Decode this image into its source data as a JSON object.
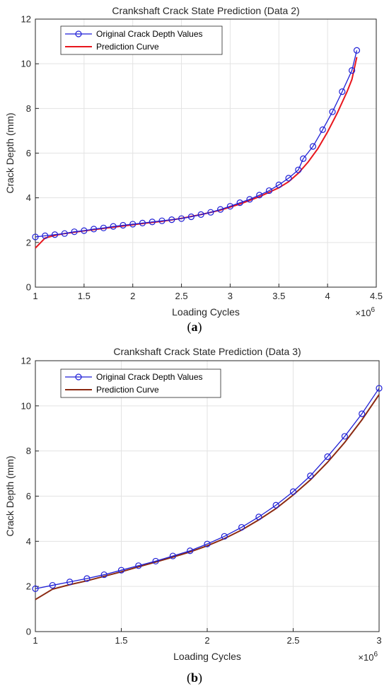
{
  "chart_data": [
    {
      "type": "line",
      "title": "Crankshaft Crack State Prediction (Data 2)",
      "xlabel": "Loading Cycles",
      "ylabel": "Crack Depth (mm)",
      "x_exponent_label": "×10",
      "x_exponent_power": "6",
      "xlim": [
        1,
        4.5
      ],
      "ylim": [
        0,
        12
      ],
      "xticks": [
        "1",
        "1.5",
        "2",
        "2.5",
        "3",
        "3.5",
        "4",
        "4.5"
      ],
      "yticks": [
        "0",
        "2",
        "4",
        "6",
        "8",
        "10",
        "12"
      ],
      "grid": true,
      "legend_position": "top-left",
      "caption": "(a)",
      "series": [
        {
          "name": "Original Crack Depth Values",
          "color": "#1f1fd6",
          "marker": "circle",
          "x": [
            1.0,
            1.1,
            1.2,
            1.3,
            1.4,
            1.5,
            1.6,
            1.7,
            1.8,
            1.9,
            2.0,
            2.1,
            2.2,
            2.3,
            2.4,
            2.5,
            2.6,
            2.7,
            2.8,
            2.9,
            3.0,
            3.1,
            3.2,
            3.3,
            3.4,
            3.5,
            3.6,
            3.7,
            3.75,
            3.85,
            3.95,
            4.05,
            4.15,
            4.25,
            4.3
          ],
          "y": [
            2.25,
            2.3,
            2.35,
            2.4,
            2.48,
            2.53,
            2.6,
            2.65,
            2.72,
            2.77,
            2.82,
            2.87,
            2.92,
            2.97,
            3.02,
            3.07,
            3.15,
            3.25,
            3.35,
            3.48,
            3.62,
            3.78,
            3.93,
            4.12,
            4.32,
            4.58,
            4.88,
            5.25,
            5.75,
            6.3,
            7.05,
            7.85,
            8.75,
            9.7,
            10.6
          ]
        },
        {
          "name": "Prediction Curve",
          "color": "#e8161d",
          "x": [
            1.0,
            1.1,
            1.2,
            1.3,
            1.5,
            1.7,
            1.9,
            2.1,
            2.3,
            2.5,
            2.7,
            2.9,
            3.1,
            3.3,
            3.5,
            3.6,
            3.7,
            3.8,
            3.9,
            4.0,
            4.1,
            4.2,
            4.25,
            4.3
          ],
          "y": [
            1.75,
            2.2,
            2.32,
            2.4,
            2.52,
            2.63,
            2.74,
            2.85,
            2.95,
            3.08,
            3.25,
            3.45,
            3.72,
            4.05,
            4.45,
            4.72,
            5.1,
            5.6,
            6.2,
            6.95,
            7.8,
            8.75,
            9.3,
            10.3
          ]
        }
      ]
    },
    {
      "type": "line",
      "title": "Crankshaft Crack State Prediction (Data 3)",
      "xlabel": "Loading Cycles",
      "ylabel": "Crack Depth (mm)",
      "x_exponent_label": "×10",
      "x_exponent_power": "6",
      "xlim": [
        1,
        3
      ],
      "ylim": [
        0,
        12
      ],
      "xticks": [
        "1",
        "1.5",
        "2",
        "2.5",
        "3"
      ],
      "yticks": [
        "0",
        "2",
        "4",
        "6",
        "8",
        "10",
        "12"
      ],
      "grid": true,
      "legend_position": "top-left",
      "caption": "(b)",
      "series": [
        {
          "name": "Original Crack Depth Values",
          "color": "#1f1fd6",
          "marker": "circle",
          "x": [
            1.0,
            1.1,
            1.2,
            1.3,
            1.4,
            1.5,
            1.6,
            1.7,
            1.8,
            1.9,
            2.0,
            2.1,
            2.2,
            2.3,
            2.4,
            2.5,
            2.6,
            2.7,
            2.8,
            2.9,
            3.0
          ],
          "y": [
            1.9,
            2.05,
            2.2,
            2.35,
            2.52,
            2.72,
            2.92,
            3.12,
            3.35,
            3.58,
            3.88,
            4.22,
            4.62,
            5.08,
            5.6,
            6.2,
            6.9,
            7.75,
            8.65,
            9.65,
            10.78
          ]
        },
        {
          "name": "Prediction Curve",
          "color": "#8b2a12",
          "x": [
            1.0,
            1.1,
            1.2,
            1.3,
            1.4,
            1.5,
            1.6,
            1.7,
            1.8,
            1.9,
            2.0,
            2.1,
            2.2,
            2.3,
            2.4,
            2.5,
            2.6,
            2.7,
            2.8,
            2.9,
            3.0
          ],
          "y": [
            1.42,
            1.88,
            2.08,
            2.25,
            2.45,
            2.65,
            2.87,
            3.08,
            3.3,
            3.53,
            3.8,
            4.12,
            4.5,
            4.95,
            5.45,
            6.05,
            6.72,
            7.5,
            8.38,
            9.38,
            10.5
          ]
        }
      ]
    }
  ]
}
